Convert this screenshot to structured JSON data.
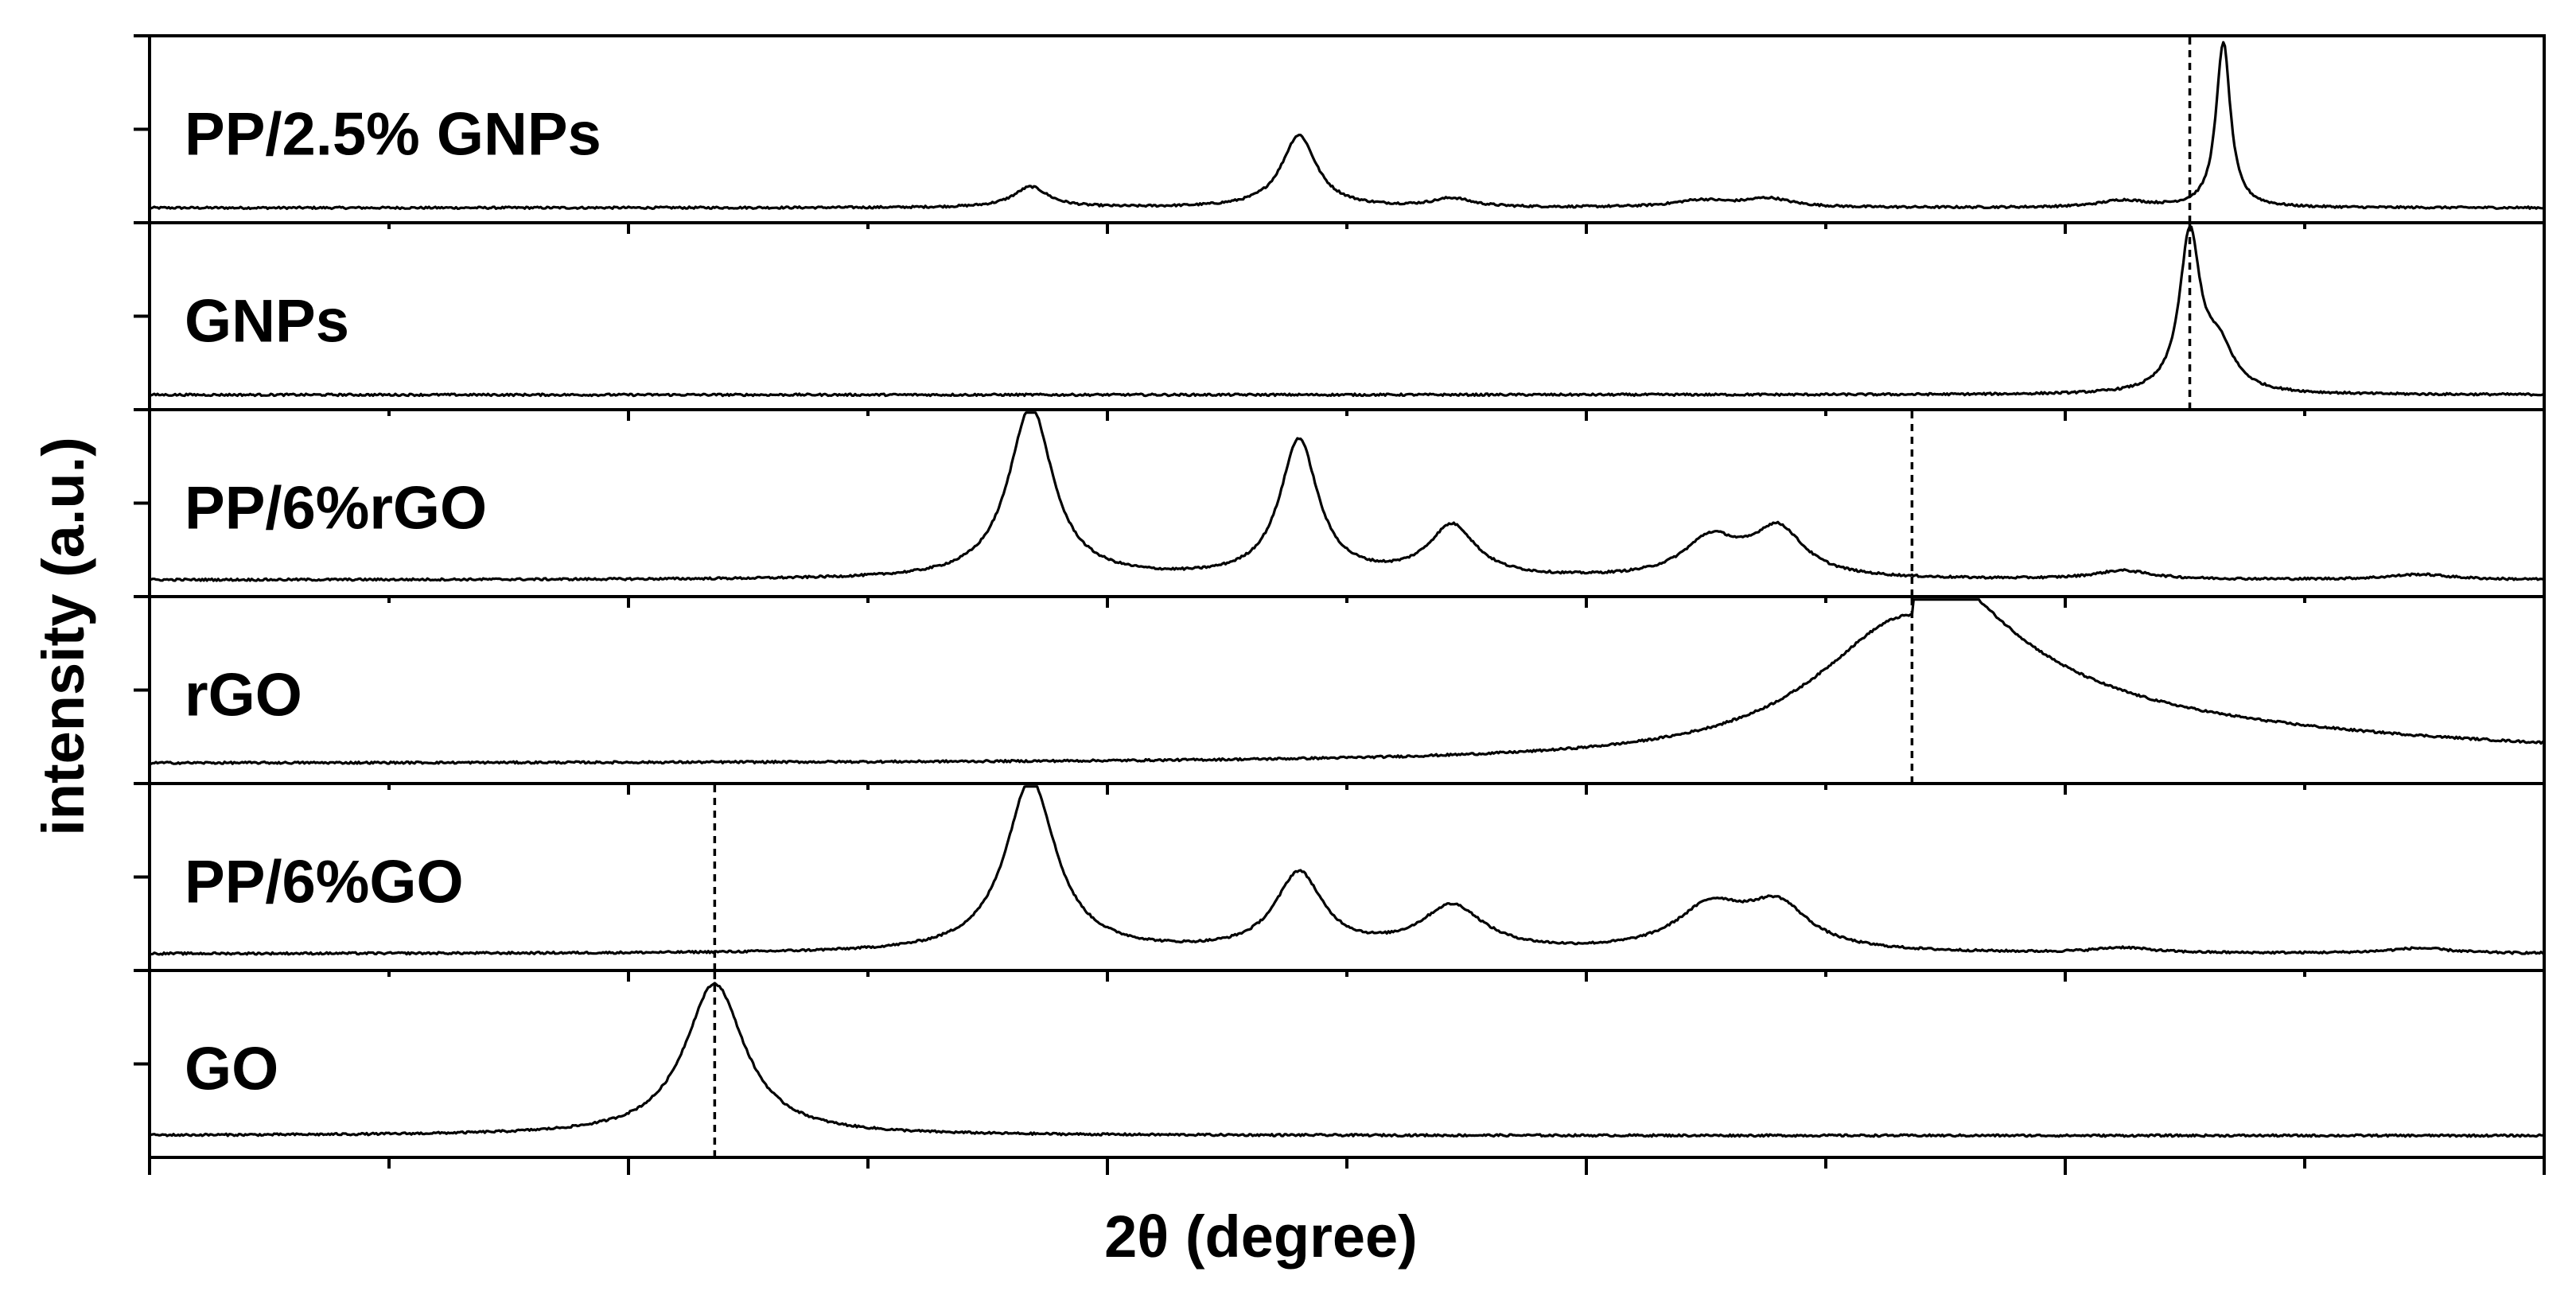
{
  "chart_data": {
    "type": "line",
    "title": "",
    "xlabel": "2θ (degree)",
    "ylabel": "intensity (a.u.)",
    "xlim": [
      5,
      30
    ],
    "x_tick_labels_shown": false,
    "y_tick_labels_shown": false,
    "layout": "stacked panels, shared x axis",
    "series": [
      {
        "name": "PP/2.5% GNPs",
        "baseline": 0.04,
        "reference_line_x": 26.3,
        "peaks": [
          {
            "x": 14.2,
            "height": 0.12,
            "width": 0.22
          },
          {
            "x": 17.0,
            "height": 0.42,
            "width": 0.22
          },
          {
            "x": 18.6,
            "height": 0.05,
            "width": 0.25
          },
          {
            "x": 21.2,
            "height": 0.04,
            "width": 0.35
          },
          {
            "x": 21.9,
            "height": 0.05,
            "width": 0.3
          },
          {
            "x": 25.6,
            "height": 0.04,
            "width": 0.3
          },
          {
            "x": 26.65,
            "height": 0.96,
            "width": 0.09
          }
        ]
      },
      {
        "name": "GNPs",
        "baseline": 0.04,
        "reference_line_x": 26.3,
        "peaks": [
          {
            "x": 26.3,
            "height": 0.9,
            "width": 0.13
          },
          {
            "x": 26.6,
            "height": 0.25,
            "width": 0.2
          }
        ]
      },
      {
        "name": "PP/6%rGO",
        "baseline": 0.05,
        "reference_line_x": 23.4,
        "peaks": [
          {
            "x": 14.2,
            "height": 1.0,
            "width": 0.28
          },
          {
            "x": 17.0,
            "height": 0.8,
            "width": 0.24
          },
          {
            "x": 18.6,
            "height": 0.3,
            "width": 0.3
          },
          {
            "x": 21.3,
            "height": 0.22,
            "width": 0.35
          },
          {
            "x": 22.0,
            "height": 0.28,
            "width": 0.33
          },
          {
            "x": 25.6,
            "height": 0.05,
            "width": 0.35
          },
          {
            "x": 28.7,
            "height": 0.03,
            "width": 0.4
          }
        ]
      },
      {
        "name": "rGO",
        "baseline": 0.07,
        "reference_line_x": 23.4,
        "peaks": [
          {
            "x": 23.4,
            "height": 0.86,
            "width": 1.2
          }
        ]
      },
      {
        "name": "PP/6%GO",
        "baseline": 0.05,
        "reference_line_x": 10.9,
        "peaks": [
          {
            "x": 14.2,
            "height": 1.0,
            "width": 0.32
          },
          {
            "x": 17.0,
            "height": 0.45,
            "width": 0.3
          },
          {
            "x": 18.6,
            "height": 0.26,
            "width": 0.4
          },
          {
            "x": 21.3,
            "height": 0.25,
            "width": 0.45
          },
          {
            "x": 22.0,
            "height": 0.25,
            "width": 0.4
          },
          {
            "x": 25.6,
            "height": 0.03,
            "width": 0.35
          },
          {
            "x": 28.7,
            "height": 0.03,
            "width": 0.4
          }
        ]
      },
      {
        "name": "GO",
        "baseline": 0.08,
        "reference_line_x": 10.9,
        "peaks": [
          {
            "x": 10.9,
            "height": 0.88,
            "width": 0.38
          }
        ]
      }
    ]
  }
}
